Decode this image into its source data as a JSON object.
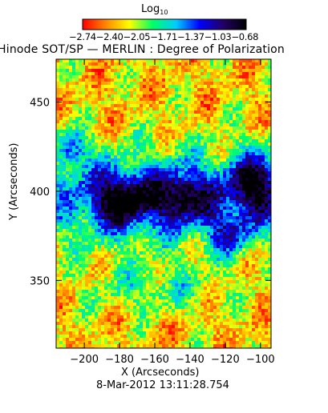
{
  "colorbar": {
    "title": "Log",
    "title_sub": "10",
    "tick_string": "−2.74−2.40−2.05−1.71−1.37−1.03−0.68",
    "ticks": [
      -2.74,
      -2.4,
      -2.05,
      -1.71,
      -1.37,
      -1.03,
      -0.68
    ],
    "range": [
      -2.74,
      -0.68
    ],
    "colormap": [
      "#ff0000",
      "#ff8800",
      "#ffff00",
      "#00ff66",
      "#00ccff",
      "#0000ff",
      "#220066",
      "#000000"
    ]
  },
  "chart_data": {
    "type": "heatmap",
    "title": "Hinode SOT/SP — MERLIN : Degree of Polarization",
    "xlabel": "X (Arcseconds)",
    "ylabel": "Y (Arcseconds)",
    "xlim": [
      -216,
      -94
    ],
    "ylim": [
      312,
      474
    ],
    "xticks": [
      -200,
      -180,
      -160,
      -140,
      -120,
      -100
    ],
    "yticks": [
      350,
      400,
      450
    ],
    "value_range": [
      -2.74,
      -0.68
    ],
    "value_units": "Log10 degree of polarization"
  },
  "footer": {
    "timestamp": "8-Mar-2012 13:11:28.754"
  }
}
